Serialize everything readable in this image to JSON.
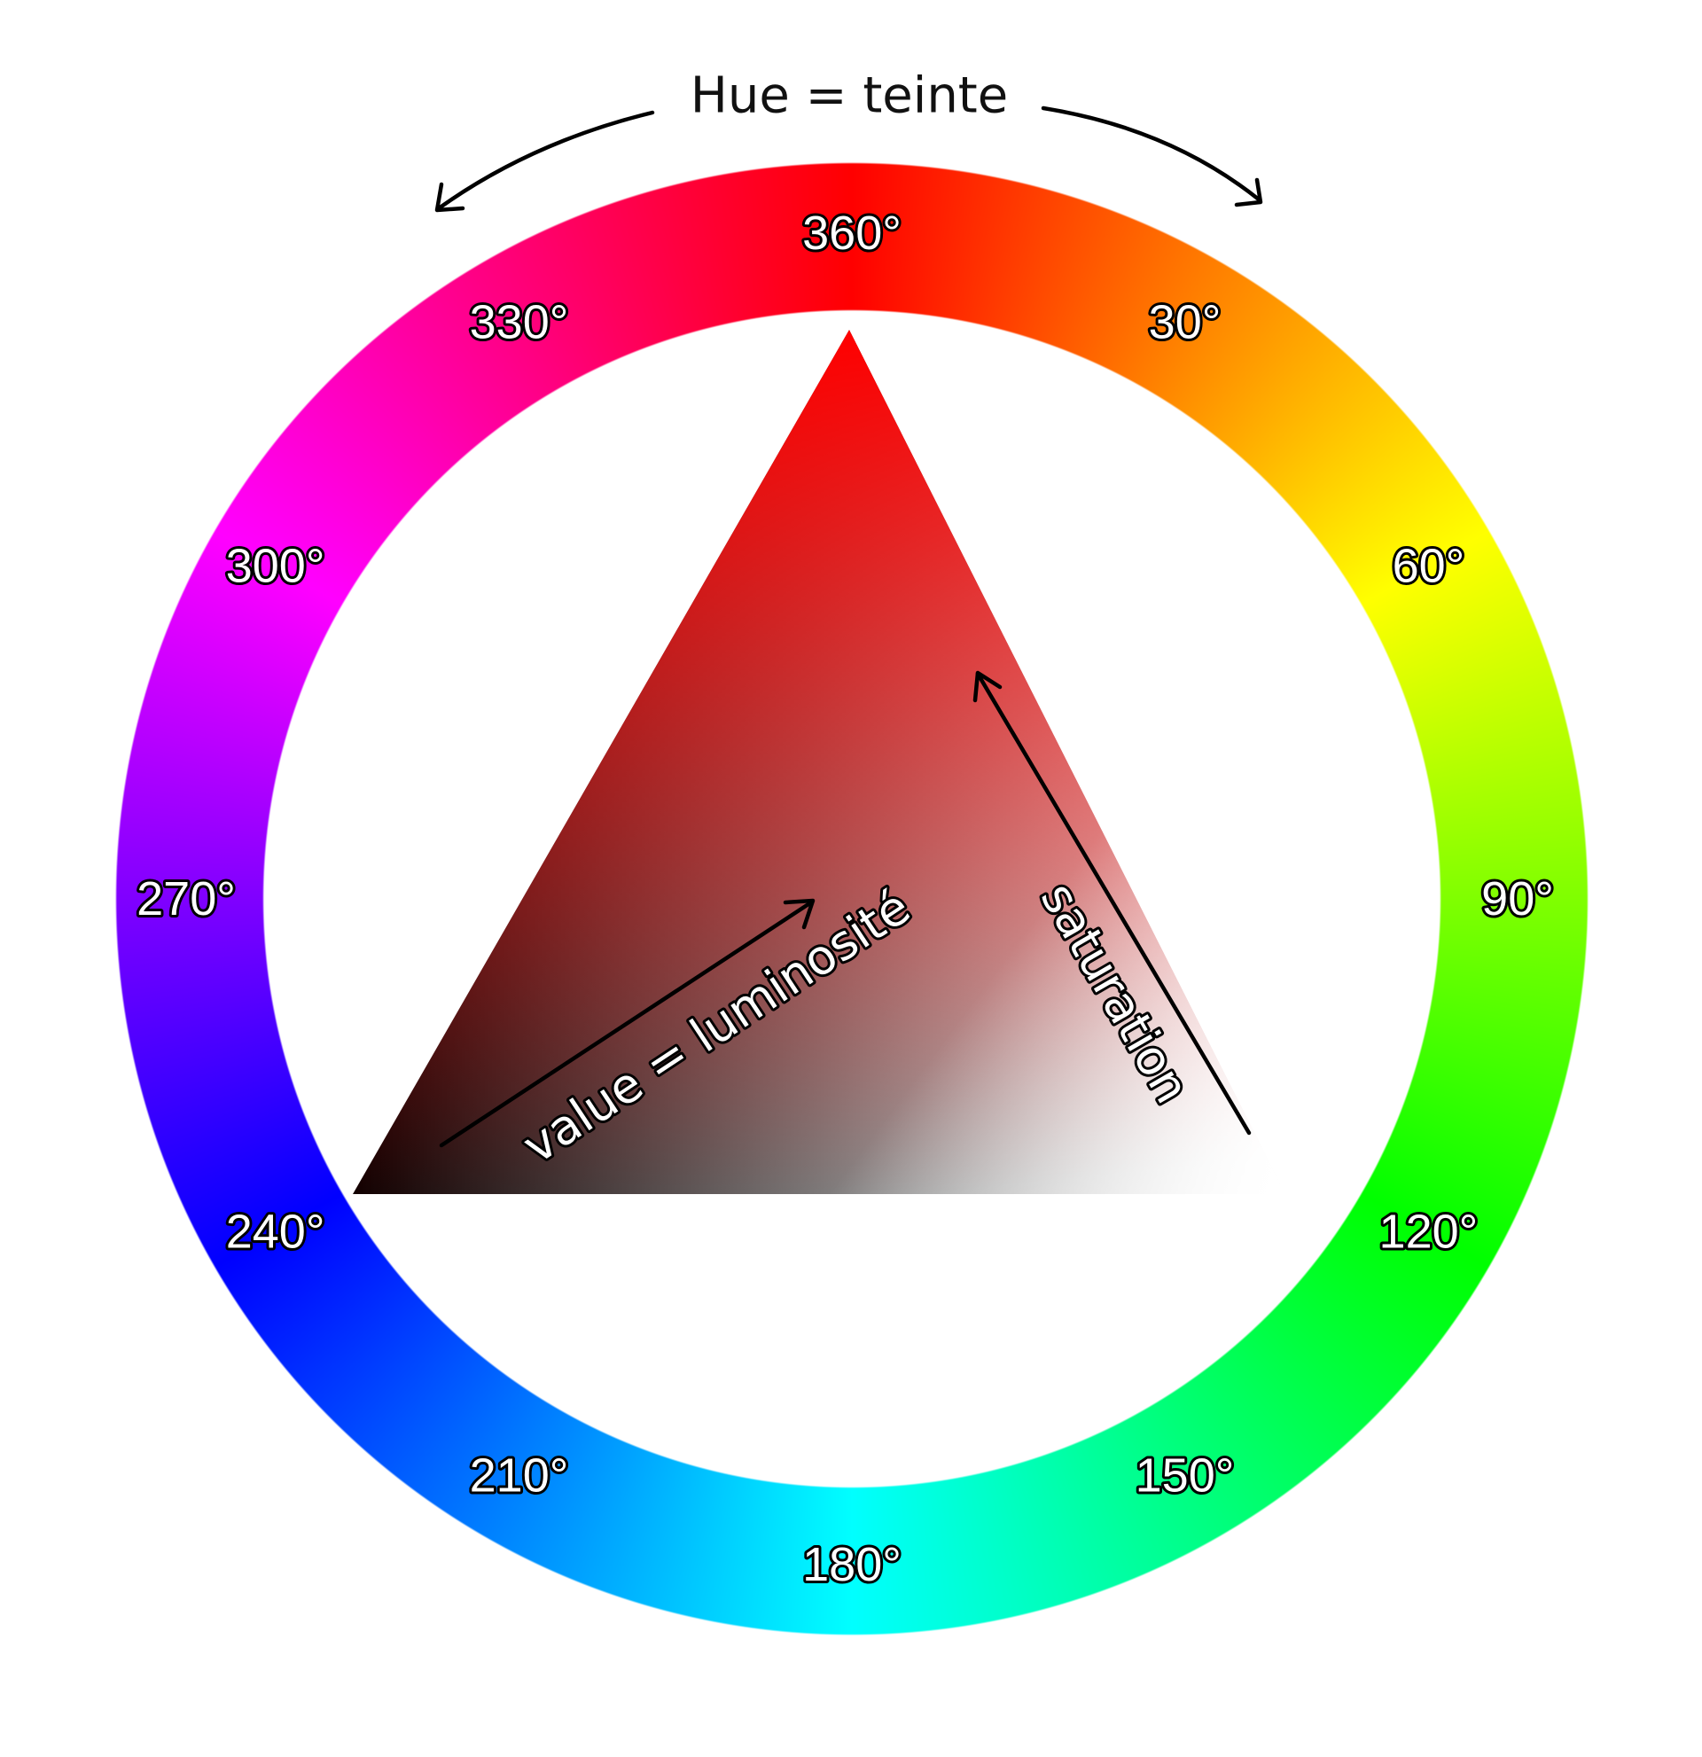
{
  "title": "Hue = teinte",
  "hue_labels": [
    {
      "degrees": 360,
      "text": "360°"
    },
    {
      "degrees": 30,
      "text": "30°"
    },
    {
      "degrees": 60,
      "text": "60°"
    },
    {
      "degrees": 90,
      "text": "90°"
    },
    {
      "degrees": 120,
      "text": "120°"
    },
    {
      "degrees": 150,
      "text": "150°"
    },
    {
      "degrees": 180,
      "text": "180°"
    },
    {
      "degrees": 210,
      "text": "210°"
    },
    {
      "degrees": 240,
      "text": "240°"
    },
    {
      "degrees": 270,
      "text": "270°"
    },
    {
      "degrees": 300,
      "text": "300°"
    },
    {
      "degrees": 330,
      "text": "330°"
    }
  ],
  "value_label": "value = luminosité",
  "saturation_label": "saturation",
  "colors": {
    "red": "#ff0000",
    "black": "#000000",
    "white": "#ffffff",
    "text": "#111111"
  }
}
